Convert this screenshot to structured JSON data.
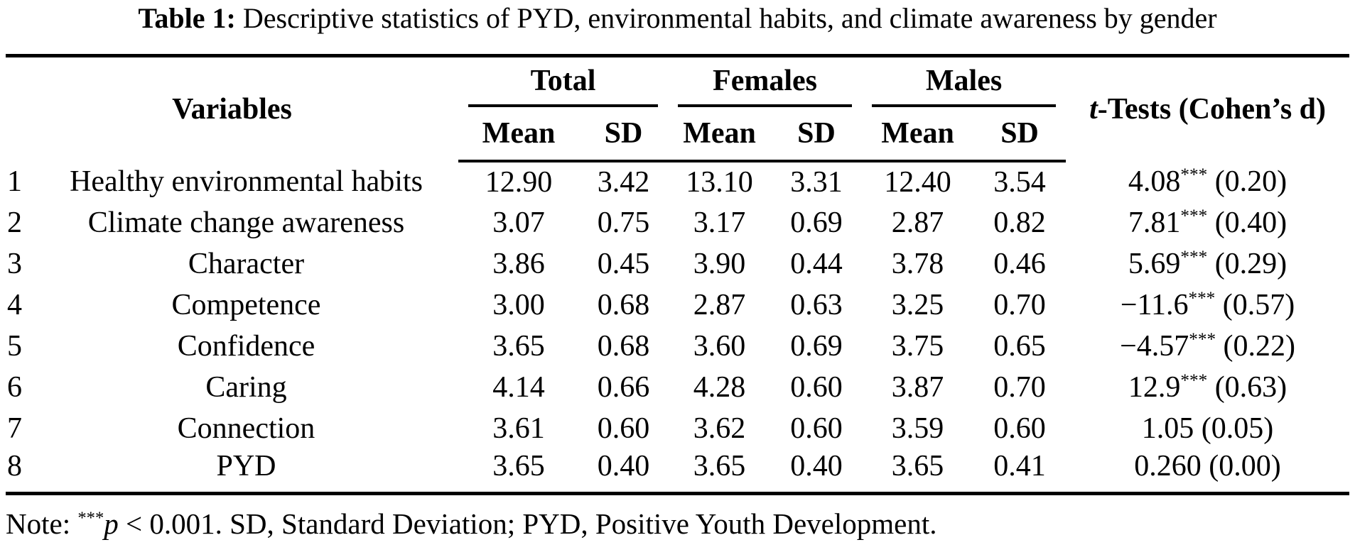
{
  "caption": {
    "label": "Table 1:",
    "text": " Descriptive statistics of PYD, environmental habits, and climate awareness by gender"
  },
  "table": {
    "variables_header": "Variables",
    "groups": [
      {
        "label": "Total"
      },
      {
        "label": "Females"
      },
      {
        "label": "Males"
      }
    ],
    "subheaders": {
      "mean": "Mean",
      "sd": "SD"
    },
    "ttest_header": {
      "t": "t",
      "rest": "-Tests (Cohen’s d)"
    },
    "rows": [
      {
        "num": "1",
        "variable": "Healthy environmental habits",
        "total_mean": "12.90",
        "total_sd": "3.42",
        "females_mean": "13.10",
        "females_sd": "3.31",
        "males_mean": "12.40",
        "males_sd": "3.54",
        "ttest": {
          "t": "4.08",
          "stars": "***",
          "d": "(0.20)"
        }
      },
      {
        "num": "2",
        "variable": "Climate change awareness",
        "total_mean": "3.07",
        "total_sd": "0.75",
        "females_mean": "3.17",
        "females_sd": "0.69",
        "males_mean": "2.87",
        "males_sd": "0.82",
        "ttest": {
          "t": "7.81",
          "stars": "***",
          "d": "(0.40)"
        }
      },
      {
        "num": "3",
        "variable": "Character",
        "total_mean": "3.86",
        "total_sd": "0.45",
        "females_mean": "3.90",
        "females_sd": "0.44",
        "males_mean": "3.78",
        "males_sd": "0.46",
        "ttest": {
          "t": "5.69",
          "stars": "***",
          "d": "(0.29)"
        }
      },
      {
        "num": "4",
        "variable": "Competence",
        "total_mean": "3.00",
        "total_sd": "0.68",
        "females_mean": "2.87",
        "females_sd": "0.63",
        "males_mean": "3.25",
        "males_sd": "0.70",
        "ttest": {
          "t": "−11.6",
          "stars": "***",
          "d": "(0.57)"
        }
      },
      {
        "num": "5",
        "variable": "Confidence",
        "total_mean": "3.65",
        "total_sd": "0.68",
        "females_mean": "3.60",
        "females_sd": "0.69",
        "males_mean": "3.75",
        "males_sd": "0.65",
        "ttest": {
          "t": "−4.57",
          "stars": "***",
          "d": "(0.22)"
        }
      },
      {
        "num": "6",
        "variable": "Caring",
        "total_mean": "4.14",
        "total_sd": "0.66",
        "females_mean": "4.28",
        "females_sd": "0.60",
        "males_mean": "3.87",
        "males_sd": "0.70",
        "ttest": {
          "t": "12.9",
          "stars": "***",
          "d": "(0.63)"
        }
      },
      {
        "num": "7",
        "variable": "Connection",
        "total_mean": "3.61",
        "total_sd": "0.60",
        "females_mean": "3.62",
        "females_sd": "0.60",
        "males_mean": "3.59",
        "males_sd": "0.60",
        "ttest": {
          "t": "1.05",
          "stars": "",
          "d": "(0.05)"
        }
      },
      {
        "num": "8",
        "variable": "PYD",
        "total_mean": "3.65",
        "total_sd": "0.40",
        "females_mean": "3.65",
        "females_sd": "0.40",
        "males_mean": "3.65",
        "males_sd": "0.41",
        "ttest": {
          "t": "0.260",
          "stars": "",
          "d": "(0.00)"
        }
      }
    ]
  },
  "note": {
    "prefix": "Note: ",
    "stars": "***",
    "p": "p",
    "rest": " < 0.001. SD, Standard Deviation; PYD, Positive Youth Development."
  },
  "colors": {
    "text": "#000000",
    "background": "#ffffff",
    "rule": "#000000"
  }
}
